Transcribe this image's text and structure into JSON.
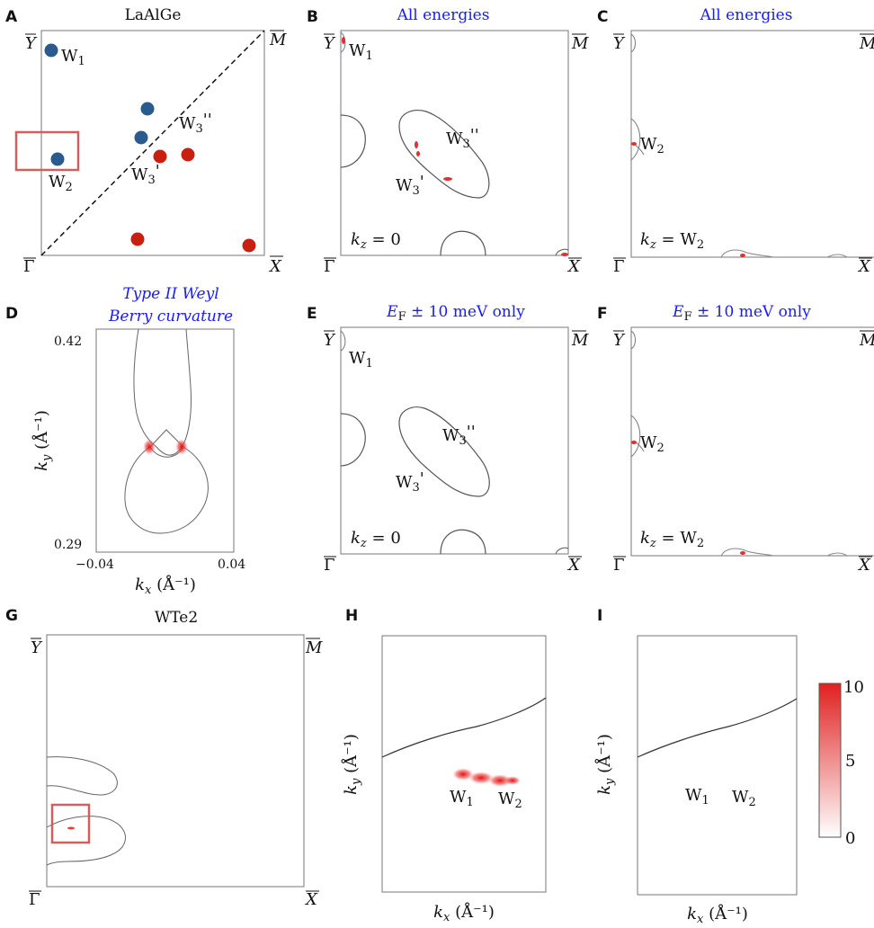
{
  "panels": {
    "A": {
      "letter": "A",
      "title": "LaAlGe",
      "weyl": [
        "W",
        "1",
        "W",
        "2",
        "W",
        "3",
        "'",
        "W",
        "3",
        "''"
      ]
    },
    "B": {
      "letter": "B",
      "title": "All energies",
      "kz": "= 0"
    },
    "C": {
      "letter": "C",
      "title": "All energies",
      "kz": "= W",
      "kzsub": "2"
    },
    "D": {
      "letter": "D",
      "title1": "Type II Weyl",
      "title2": "Berry curvature",
      "ytop": "0.42",
      "ybot": "0.29",
      "xleft": "−0.04",
      "xright": "0.04",
      "ylabel": "(Å⁻¹)",
      "xlabel": "(Å⁻¹)"
    },
    "E": {
      "letter": "E",
      "title": "± 10 meV only",
      "kz": "= 0"
    },
    "F": {
      "letter": "F",
      "title": "± 10 meV only",
      "kz": "= W",
      "kzsub": "2"
    },
    "G": {
      "letter": "G",
      "title": "WTe2"
    },
    "H": {
      "letter": "H",
      "ylabel": "(Å⁻¹)",
      "xlabel": "(Å⁻¹)"
    },
    "I": {
      "letter": "I",
      "ylabel": "(Å⁻¹)",
      "xlabel": "(Å⁻¹)"
    }
  },
  "bz": {
    "Y": "Y",
    "M": "M",
    "G": "Γ",
    "X": "X"
  },
  "weyl": {
    "w": "W",
    "s1": "1",
    "s2": "2",
    "s3": "3",
    "p1": "'",
    "p2": "''"
  },
  "colorbar": {
    "max": "10",
    "mid": "5",
    "min": "0"
  },
  "colors": {
    "blue_dot": "#2a5b8f",
    "red_dot": "#c82010",
    "box": "#d06060",
    "title_blue": "#1a1aff"
  }
}
